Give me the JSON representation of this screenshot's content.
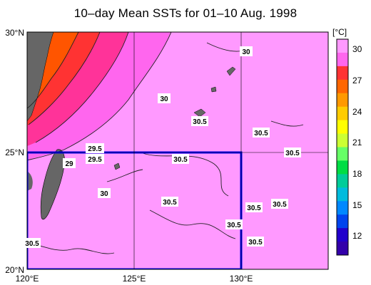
{
  "title": "10–day Mean SSTs for 01–10 Aug. 1998",
  "axes": {
    "lat_labels": [
      "30°N",
      "25°N",
      "20°N"
    ],
    "lon_labels": [
      "120°E",
      "125°E",
      "130°E"
    ]
  },
  "colorbar": {
    "unit": "[°C]",
    "ticks": [
      "30",
      "27",
      "24",
      "21",
      "18",
      "15",
      "12"
    ],
    "colors": [
      "#ff99ff",
      "#ff66ee",
      "#ff3333",
      "#ff6600",
      "#ff9900",
      "#ffcc00",
      "#ffff00",
      "#ccff33",
      "#66ff66",
      "#00dd44",
      "#00cc99",
      "#00bbdd",
      "#0088ff",
      "#0044ee",
      "#2200cc",
      "#3300aa"
    ]
  },
  "isotherm_labels": [
    {
      "text": "30"
    },
    {
      "text": "30"
    },
    {
      "text": "30.5"
    },
    {
      "text": "30.5"
    },
    {
      "text": "30.5"
    },
    {
      "text": "29.5"
    },
    {
      "text": "29.5"
    },
    {
      "text": "29"
    },
    {
      "text": "30.5"
    },
    {
      "text": "30"
    },
    {
      "text": "30.5"
    },
    {
      "text": "30.5"
    },
    {
      "text": "30.5"
    },
    {
      "text": "30.5"
    },
    {
      "text": "30.5"
    },
    {
      "text": "30.5"
    }
  ],
  "map_colors": {
    "warm_pink": "#ff99ff",
    "land": "#666666",
    "box": "#0000ee"
  }
}
